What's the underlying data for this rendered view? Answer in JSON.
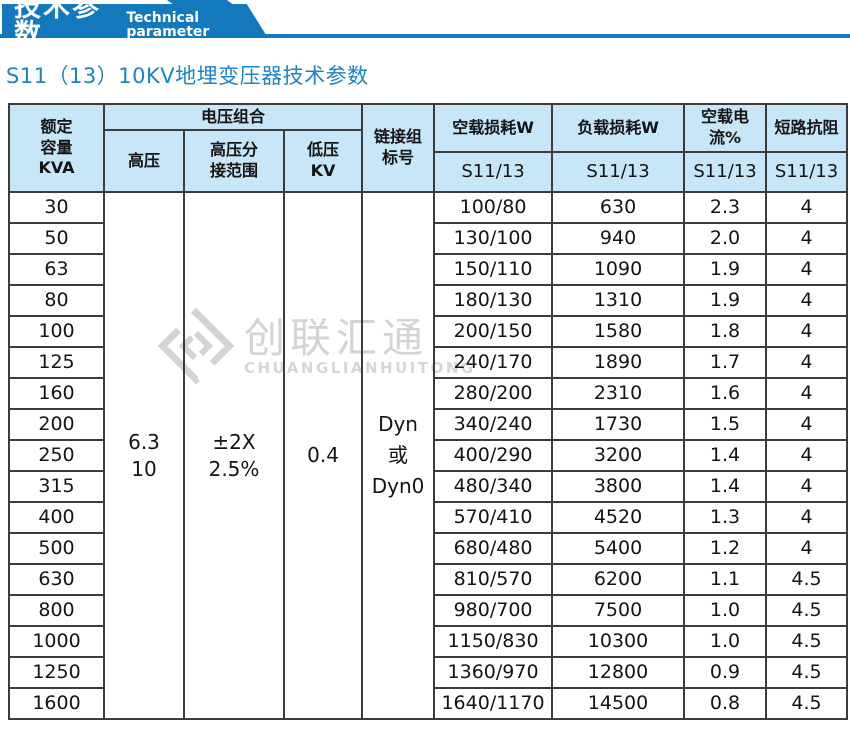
{
  "accent_color": "#1478bd",
  "header": {
    "title_cn": "技术参数",
    "title_en": "Technical parameter"
  },
  "section_title": "S11（13）10KV地埋变压器技术参数",
  "watermark": {
    "logo": "diamond-logo",
    "text_cn": "创联汇通",
    "text_en": "CHUANGLIANHUITONG",
    "color": "#d7d3d3"
  },
  "table": {
    "header": {
      "col_capacity": "额定\n容量\nKVA",
      "group_voltage": "电压组合",
      "col_hv": "高压",
      "col_hv_tap": "高压分\n接范围",
      "col_lv": "低压\nKV",
      "col_vector": "链接组\n标号",
      "col_no_load_loss": "空载损耗W",
      "col_load_loss": "负载损耗W",
      "col_no_load_current": "空载电流%",
      "col_impedance": "短路抗阻",
      "sub_no_load_loss": "S11/13",
      "sub_load_loss": "S11/13",
      "sub_no_load_current": "S11/13",
      "sub_impedance": "S11/13"
    },
    "merged": {
      "hv": "6.3\n10",
      "hv_tap": "±2X\n2.5%",
      "lv": "0.4",
      "vector": "Dyn\n或\nDyn0"
    },
    "rows": [
      {
        "kva": "30",
        "no_load_loss": "100/80",
        "load_loss": "630",
        "no_load_current": "2.3",
        "impedance": "4"
      },
      {
        "kva": "50",
        "no_load_loss": "130/100",
        "load_loss": "940",
        "no_load_current": "2.0",
        "impedance": "4"
      },
      {
        "kva": "63",
        "no_load_loss": "150/110",
        "load_loss": "1090",
        "no_load_current": "1.9",
        "impedance": "4"
      },
      {
        "kva": "80",
        "no_load_loss": "180/130",
        "load_loss": "1310",
        "no_load_current": "1.9",
        "impedance": "4"
      },
      {
        "kva": "100",
        "no_load_loss": "200/150",
        "load_loss": "1580",
        "no_load_current": "1.8",
        "impedance": "4"
      },
      {
        "kva": "125",
        "no_load_loss": "240/170",
        "load_loss": "1890",
        "no_load_current": "1.7",
        "impedance": "4"
      },
      {
        "kva": "160",
        "no_load_loss": "280/200",
        "load_loss": "2310",
        "no_load_current": "1.6",
        "impedance": "4"
      },
      {
        "kva": "200",
        "no_load_loss": "340/240",
        "load_loss": "1730",
        "no_load_current": "1.5",
        "impedance": "4"
      },
      {
        "kva": "250",
        "no_load_loss": "400/290",
        "load_loss": "3200",
        "no_load_current": "1.4",
        "impedance": "4"
      },
      {
        "kva": "315",
        "no_load_loss": "480/340",
        "load_loss": "3800",
        "no_load_current": "1.4",
        "impedance": "4"
      },
      {
        "kva": "400",
        "no_load_loss": "570/410",
        "load_loss": "4520",
        "no_load_current": "1.3",
        "impedance": "4"
      },
      {
        "kva": "500",
        "no_load_loss": "680/480",
        "load_loss": "5400",
        "no_load_current": "1.2",
        "impedance": "4"
      },
      {
        "kva": "630",
        "no_load_loss": "810/570",
        "load_loss": "6200",
        "no_load_current": "1.1",
        "impedance": "4.5"
      },
      {
        "kva": "800",
        "no_load_loss": "980/700",
        "load_loss": "7500",
        "no_load_current": "1.0",
        "impedance": "4.5"
      },
      {
        "kva": "1000",
        "no_load_loss": "1150/830",
        "load_loss": "10300",
        "no_load_current": "1.0",
        "impedance": "4.5"
      },
      {
        "kva": "1250",
        "no_load_loss": "1360/970",
        "load_loss": "12800",
        "no_load_current": "0.9",
        "impedance": "4.5"
      },
      {
        "kva": "1600",
        "no_load_loss": "1640/1170",
        "load_loss": "14500",
        "no_load_current": "0.8",
        "impedance": "4.5"
      }
    ]
  }
}
